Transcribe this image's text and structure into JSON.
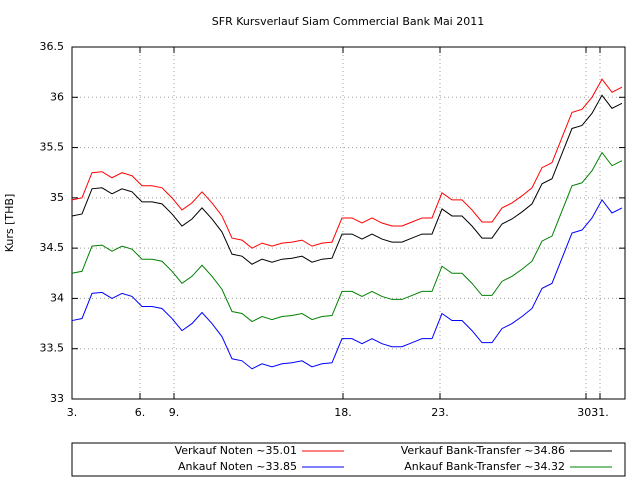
{
  "chart_data": {
    "type": "line",
    "title": "SFR Kursverlauf Siam Commercial Bank Mai 2011",
    "ylabel": "Kurs [THB]",
    "x": [
      0,
      1,
      2,
      3,
      4,
      5,
      6,
      7,
      8,
      9,
      10,
      11,
      12,
      13,
      14,
      15,
      16,
      17,
      18,
      19,
      20,
      21,
      22,
      23,
      24,
      25,
      26,
      27,
      28,
      29,
      30,
      31,
      32,
      33,
      34,
      35,
      36,
      37,
      38,
      39,
      40,
      41,
      42,
      43,
      44,
      45,
      46,
      47,
      48,
      49,
      50,
      51,
      52,
      53,
      54,
      55
    ],
    "xlim": [
      0,
      55.3
    ],
    "xticks": [
      {
        "value": 0,
        "label": "3."
      },
      {
        "value": 6.8,
        "label": "6."
      },
      {
        "value": 10.2,
        "label": "9."
      },
      {
        "value": 27.1,
        "label": "18."
      },
      {
        "value": 36.8,
        "label": "23."
      },
      {
        "value": 51.4,
        "label": "30."
      },
      {
        "value": 52.8,
        "label": "31."
      }
    ],
    "ylim": [
      33,
      36.5
    ],
    "yticks": [
      33,
      33.5,
      34,
      34.5,
      35,
      35.5,
      36,
      36.5
    ],
    "grid": true,
    "legend": "bottom",
    "series": [
      {
        "name": "Verkauf Noten ~35.01",
        "color": "#ff0000",
        "values": [
          34.98,
          35.0,
          35.25,
          35.26,
          35.2,
          35.25,
          35.22,
          35.12,
          35.12,
          35.1,
          35.0,
          34.88,
          34.95,
          35.06,
          34.95,
          34.82,
          34.6,
          34.58,
          34.5,
          34.55,
          34.52,
          34.55,
          34.56,
          34.58,
          34.52,
          34.55,
          34.56,
          34.8,
          34.8,
          34.75,
          34.8,
          34.75,
          34.72,
          34.72,
          34.76,
          34.8,
          34.8,
          35.05,
          34.98,
          34.98,
          34.88,
          34.76,
          34.76,
          34.9,
          34.95,
          35.02,
          35.1,
          35.3,
          35.35,
          35.6,
          35.85,
          35.88,
          36.0,
          36.18,
          36.05,
          36.1
        ]
      },
      {
        "name": "Verkauf Bank-Transfer ~34.86",
        "color": "#000000",
        "values": [
          34.82,
          34.84,
          35.09,
          35.1,
          35.04,
          35.09,
          35.06,
          34.96,
          34.96,
          34.94,
          34.84,
          34.72,
          34.79,
          34.9,
          34.79,
          34.66,
          34.44,
          34.42,
          34.34,
          34.39,
          34.36,
          34.39,
          34.4,
          34.42,
          34.36,
          34.39,
          34.4,
          34.64,
          34.64,
          34.59,
          34.64,
          34.59,
          34.56,
          34.56,
          34.6,
          34.64,
          34.64,
          34.89,
          34.82,
          34.82,
          34.72,
          34.6,
          34.6,
          34.74,
          34.79,
          34.86,
          34.94,
          35.14,
          35.19,
          35.44,
          35.69,
          35.72,
          35.84,
          36.02,
          35.89,
          35.94
        ]
      },
      {
        "name": "Ankauf Noten ~33.85",
        "color": "#0000ff",
        "values": [
          33.78,
          33.8,
          34.05,
          34.06,
          34.0,
          34.05,
          34.02,
          33.92,
          33.92,
          33.9,
          33.8,
          33.68,
          33.75,
          33.86,
          33.75,
          33.62,
          33.4,
          33.38,
          33.3,
          33.35,
          33.32,
          33.35,
          33.36,
          33.38,
          33.32,
          33.35,
          33.36,
          33.6,
          33.6,
          33.55,
          33.6,
          33.55,
          33.52,
          33.52,
          33.56,
          33.6,
          33.6,
          33.85,
          33.78,
          33.78,
          33.68,
          33.56,
          33.56,
          33.7,
          33.75,
          33.82,
          33.9,
          34.1,
          34.15,
          34.4,
          34.65,
          34.68,
          34.8,
          34.98,
          34.85,
          34.9
        ]
      },
      {
        "name": "Ankauf Bank-Transfer ~34.32",
        "color": "#008000",
        "values": [
          34.25,
          34.27,
          34.52,
          34.53,
          34.47,
          34.52,
          34.49,
          34.39,
          34.39,
          34.37,
          34.27,
          34.15,
          34.22,
          34.33,
          34.22,
          34.09,
          33.87,
          33.85,
          33.77,
          33.82,
          33.79,
          33.82,
          33.83,
          33.85,
          33.79,
          33.82,
          33.83,
          34.07,
          34.07,
          34.02,
          34.07,
          34.02,
          33.99,
          33.99,
          34.03,
          34.07,
          34.07,
          34.32,
          34.25,
          34.25,
          34.15,
          34.03,
          34.03,
          34.17,
          34.22,
          34.29,
          34.37,
          34.57,
          34.62,
          34.87,
          35.12,
          35.15,
          35.27,
          35.45,
          35.32,
          35.37
        ]
      }
    ]
  }
}
